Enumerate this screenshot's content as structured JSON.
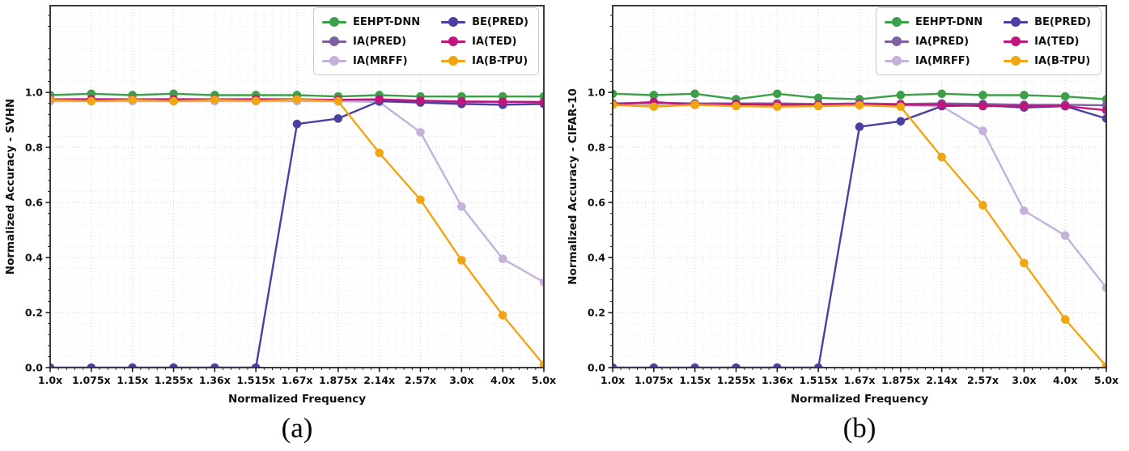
{
  "figure": {
    "caption_a": "(a)",
    "caption_b": "(b)"
  },
  "legend": {
    "entries": [
      {
        "label": "EEHPT-DNN",
        "color": "#3da048"
      },
      {
        "label": "IA(PRED)",
        "color": "#7e5fa2"
      },
      {
        "label": "IA(MRFF)",
        "color": "#c5b1da"
      },
      {
        "label": "BE(PRED)",
        "color": "#4c3fa0"
      },
      {
        "label": "IA(TED)",
        "color": "#c0157d"
      },
      {
        "label": "IA(B-TPU)",
        "color": "#f0a513"
      }
    ]
  },
  "chart_data": [
    {
      "type": "line",
      "title": "",
      "xlabel": "Normalized Frequency",
      "ylabel": "Normalized Accuracy - SVHN",
      "categories": [
        "1.0x",
        "1.075x",
        "1.15x",
        "1.255x",
        "1.36x",
        "1.515x",
        "1.67x",
        "1.875x",
        "2.14x",
        "2.57x",
        "3.0x",
        "4.0x",
        "5.0x"
      ],
      "yticks": [
        0.0,
        0.2,
        0.4,
        0.6,
        0.8,
        1.0
      ],
      "ytick_labels": [
        "0.0",
        "0.2",
        "0.4",
        "0.6",
        "0.8",
        "1.0"
      ],
      "ylim": [
        0,
        1.315
      ],
      "grid": "dotted",
      "legend_position": "upper right",
      "series": [
        {
          "name": "EEHPT-DNN",
          "color": "#3da048",
          "values": [
            0.99,
            0.995,
            0.99,
            0.995,
            0.99,
            0.99,
            0.99,
            0.985,
            0.99,
            0.985,
            0.985,
            0.985,
            0.985
          ]
        },
        {
          "name": "IA(PRED)",
          "color": "#7e5fa2",
          "values": [
            0.97,
            0.97,
            0.97,
            0.97,
            0.97,
            0.97,
            0.97,
            0.97,
            0.972,
            0.968,
            0.965,
            0.965,
            0.965
          ]
        },
        {
          "name": "IA(MRFF)",
          "color": "#c5b1da",
          "values": [
            0.968,
            0.968,
            0.968,
            0.968,
            0.968,
            0.968,
            0.968,
            0.968,
            0.965,
            0.855,
            0.585,
            0.395,
            0.31
          ]
        },
        {
          "name": "BE(PRED)",
          "color": "#4c3fa0",
          "values": [
            0.0,
            0.0,
            0.0,
            0.0,
            0.0,
            0.0,
            0.885,
            0.905,
            0.968,
            0.963,
            0.958,
            0.955,
            0.958
          ]
        },
        {
          "name": "IA(TED)",
          "color": "#c0157d",
          "values": [
            0.975,
            0.975,
            0.975,
            0.975,
            0.975,
            0.975,
            0.975,
            0.973,
            0.975,
            0.97,
            0.967,
            0.966,
            0.965
          ]
        },
        {
          "name": "IA(B-TPU)",
          "color": "#f0a513",
          "values": [
            0.973,
            0.968,
            0.973,
            0.968,
            0.973,
            0.969,
            0.974,
            0.968,
            0.78,
            0.61,
            0.39,
            0.19,
            0.01
          ]
        }
      ]
    },
    {
      "type": "line",
      "title": "",
      "xlabel": "Normalized Frequency",
      "ylabel": "Normalized Accuracy - CIFAR-10",
      "categories": [
        "1.0x",
        "1.075x",
        "1.15x",
        "1.255x",
        "1.36x",
        "1.515x",
        "1.67x",
        "1.875x",
        "2.14x",
        "2.57x",
        "3.0x",
        "4.0x",
        "5.0x"
      ],
      "yticks": [
        0.0,
        0.2,
        0.4,
        0.6,
        0.8,
        1.0
      ],
      "ytick_labels": [
        "0.0",
        "0.2",
        "0.4",
        "0.6",
        "0.8",
        "1.0"
      ],
      "ylim": [
        0,
        1.315
      ],
      "grid": "dotted",
      "legend_position": "upper right",
      "series": [
        {
          "name": "EEHPT-DNN",
          "color": "#3da048",
          "values": [
            0.995,
            0.99,
            0.995,
            0.975,
            0.995,
            0.98,
            0.975,
            0.99,
            0.995,
            0.99,
            0.99,
            0.985,
            0.975
          ]
        },
        {
          "name": "IA(PRED)",
          "color": "#7e5fa2",
          "values": [
            0.96,
            0.962,
            0.96,
            0.96,
            0.96,
            0.958,
            0.96,
            0.958,
            0.96,
            0.958,
            0.955,
            0.955,
            0.953
          ]
        },
        {
          "name": "IA(MRFF)",
          "color": "#c5b1da",
          "values": [
            0.955,
            0.955,
            0.955,
            0.955,
            0.955,
            0.953,
            0.955,
            0.953,
            0.95,
            0.86,
            0.57,
            0.48,
            0.29
          ]
        },
        {
          "name": "BE(PRED)",
          "color": "#4c3fa0",
          "values": [
            0.0,
            0.0,
            0.0,
            0.0,
            0.0,
            0.0,
            0.875,
            0.895,
            0.95,
            0.953,
            0.945,
            0.95,
            0.905
          ]
        },
        {
          "name": "IA(TED)",
          "color": "#c0157d",
          "values": [
            0.957,
            0.965,
            0.955,
            0.957,
            0.955,
            0.955,
            0.957,
            0.955,
            0.955,
            0.95,
            0.95,
            0.95,
            0.935
          ]
        },
        {
          "name": "IA(B-TPU)",
          "color": "#f0a513",
          "values": [
            0.955,
            0.948,
            0.955,
            0.95,
            0.948,
            0.95,
            0.953,
            0.948,
            0.765,
            0.59,
            0.38,
            0.175,
            0.005
          ]
        }
      ]
    }
  ]
}
